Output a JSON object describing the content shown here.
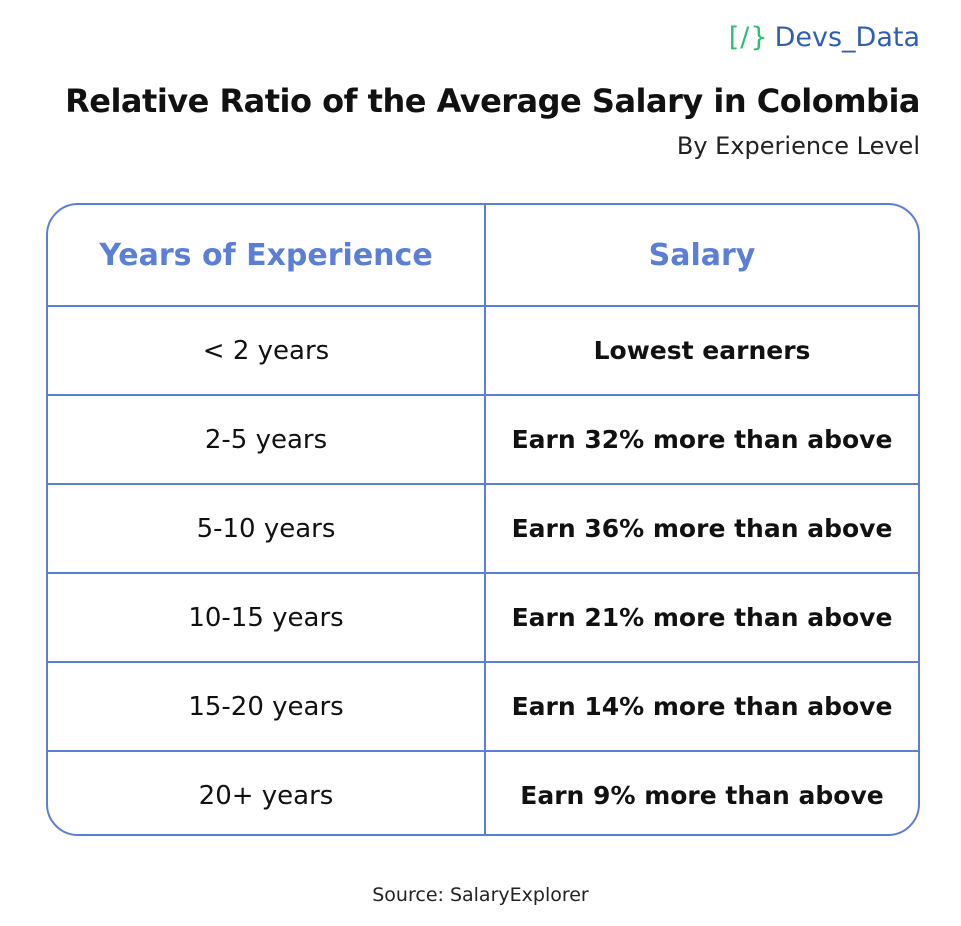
{
  "logo": {
    "mark": "[/}",
    "text": "Devs_Data"
  },
  "header": {
    "title": "Relative Ratio of the Average Salary in Colombia",
    "subtitle": "By Experience Level"
  },
  "table": {
    "columns": [
      "Years of Experience",
      "Salary"
    ],
    "rows": [
      [
        "< 2 years",
        "Lowest earners"
      ],
      [
        "2-5 years",
        "Earn 32% more than above"
      ],
      [
        "5-10 years",
        "Earn 36% more than above"
      ],
      [
        "10-15 years",
        "Earn 21% more than above"
      ],
      [
        "15-20 years",
        "Earn 14% more than above"
      ],
      [
        "20+ years",
        "Earn 9% more than above"
      ]
    ]
  },
  "footer": {
    "source": "Source: SalaryExplorer"
  }
}
